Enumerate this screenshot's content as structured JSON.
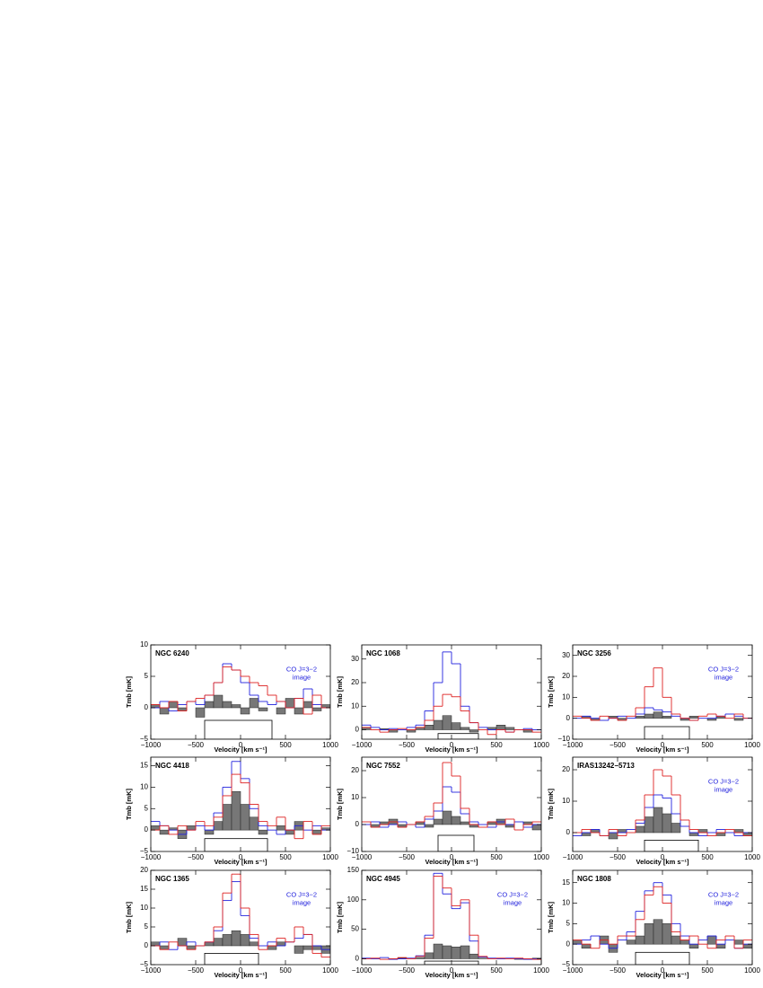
{
  "chart_data": [
    {
      "type": "step",
      "title": "NGC 6240",
      "xlabel": "Velocity [km s⁻¹]",
      "ylabel": "Tmb [mK]",
      "x": [
        -950,
        -850,
        -750,
        -650,
        -550,
        -450,
        -350,
        -250,
        -150,
        -50,
        50,
        150,
        250,
        350,
        450,
        550,
        650,
        750,
        850,
        950
      ],
      "series": [
        {
          "color": "#777777",
          "fill": true,
          "values": [
            0.5,
            -1,
            1,
            -0.5,
            0,
            -1.5,
            1,
            2,
            1,
            0.5,
            -1,
            1.5,
            -0.5,
            0,
            -1,
            1.5,
            -1,
            1,
            -0.5,
            0.5
          ]
        },
        {
          "color": "#2222dd",
          "values": [
            0,
            1,
            -0.5,
            0.5,
            1,
            0.5,
            2,
            4,
            7,
            6,
            4,
            2,
            1,
            0.5,
            1,
            0,
            1.5,
            3,
            0.5,
            0
          ]
        },
        {
          "color": "#dd2222",
          "values": [
            0.5,
            0,
            1,
            -0.5,
            1,
            1.5,
            2,
            4,
            6.5,
            6,
            5,
            4,
            3.5,
            2,
            1,
            0,
            1.5,
            -1,
            2,
            0
          ]
        }
      ],
      "window": [
        -400,
        350
      ],
      "annotation": [
        "CO J=3−2",
        "image"
      ],
      "xlim": [
        -1000,
        1000
      ],
      "xticks": [
        {
          "value": -1000,
          "label": "−1000"
        },
        {
          "value": -500,
          "label": "−500"
        },
        0,
        500,
        1000
      ],
      "ylim": [
        -5,
        10
      ],
      "yticks": [
        {
          "value": -5,
          "label": "−5"
        },
        0,
        5,
        10
      ]
    },
    {
      "type": "step",
      "title": "NGC 1068",
      "xlabel": "Velocity [km s⁻¹]",
      "ylabel": "Tmb [mK]",
      "x": [
        -950,
        -850,
        -750,
        -650,
        -550,
        -450,
        -350,
        -250,
        -150,
        -50,
        50,
        150,
        250,
        350,
        450,
        550,
        650,
        750,
        850,
        950
      ],
      "series": [
        {
          "color": "#777777",
          "fill": true,
          "values": [
            1,
            0,
            0.5,
            -1,
            0,
            -1,
            1,
            2,
            4,
            6,
            3,
            1,
            -1,
            0,
            1,
            2,
            1,
            0,
            -1,
            0
          ]
        },
        {
          "color": "#2222dd",
          "values": [
            2,
            1,
            0,
            0.5,
            0,
            1,
            2,
            8,
            20,
            33,
            28,
            10,
            3,
            1,
            0,
            0,
            -1,
            0,
            0.5,
            0
          ]
        },
        {
          "color": "#dd2222",
          "values": [
            1,
            0,
            -1,
            0,
            0.5,
            0,
            1,
            4,
            10,
            15,
            14,
            8,
            3,
            0,
            -2,
            0,
            -1,
            0,
            0,
            -1
          ]
        }
      ],
      "window": [
        -150,
        300
      ],
      "xlim": [
        -1000,
        1000
      ],
      "xticks": [
        {
          "value": -1000,
          "label": "−1000"
        },
        {
          "value": -500,
          "label": "−500"
        },
        0,
        500,
        1000
      ],
      "ylim": [
        -4,
        36
      ],
      "yticks": [
        0,
        10,
        20,
        30
      ]
    },
    {
      "type": "step",
      "title": "NGC 3256",
      "xlabel": "Velocity [km s⁻¹]",
      "ylabel": "Tmb [mK]",
      "x": [
        -950,
        -850,
        -750,
        -650,
        -550,
        -450,
        -350,
        -250,
        -150,
        -50,
        50,
        150,
        250,
        350,
        450,
        550,
        650,
        750,
        850,
        950
      ],
      "series": [
        {
          "color": "#777777",
          "fill": true,
          "values": [
            0,
            1,
            -1,
            0,
            1,
            -1,
            0,
            1,
            2,
            3,
            1,
            0,
            -1,
            1,
            0,
            -1,
            1,
            0,
            -1,
            0
          ]
        },
        {
          "color": "#2222dd",
          "values": [
            0,
            1,
            0,
            -1,
            0,
            1,
            0,
            2,
            5,
            4,
            3,
            1,
            0,
            -1,
            0,
            0,
            1,
            2,
            1,
            0
          ]
        },
        {
          "color": "#dd2222",
          "values": [
            1,
            0,
            -1,
            1,
            0,
            -1,
            1,
            5,
            15,
            24,
            10,
            2,
            0,
            -1,
            1,
            2,
            1,
            0,
            2,
            0
          ]
        }
      ],
      "window": [
        -200,
        300
      ],
      "annotation": [
        "CO J=3−2",
        "image"
      ],
      "xlim": [
        -1000,
        1000
      ],
      "xticks": [
        {
          "value": -1000,
          "label": "−1000"
        },
        {
          "value": -500,
          "label": "−500"
        },
        0,
        500,
        1000
      ],
      "ylim": [
        -10,
        35
      ],
      "yticks": [
        {
          "value": -10,
          "label": "−10"
        },
        0,
        10,
        20,
        30
      ]
    },
    {
      "type": "step",
      "title": "NGC 4418",
      "xlabel": "Velocity [km s⁻¹]",
      "ylabel": "Tmb [mK]",
      "x": [
        -950,
        -850,
        -750,
        -650,
        -550,
        -450,
        -350,
        -250,
        -150,
        -50,
        50,
        150,
        250,
        350,
        450,
        550,
        650,
        750,
        850,
        950
      ],
      "series": [
        {
          "color": "#777777",
          "fill": true,
          "values": [
            1,
            -1,
            0.5,
            -2,
            1,
            0,
            -1,
            2,
            6,
            9,
            6,
            3,
            -1,
            0,
            1,
            -1,
            2,
            0,
            -1,
            0.5
          ]
        },
        {
          "color": "#2222dd",
          "values": [
            2,
            1,
            0,
            -1,
            0,
            1,
            0,
            4,
            10,
            16,
            12,
            5,
            1,
            0,
            -1,
            0,
            1,
            0,
            1,
            0
          ]
        },
        {
          "color": "#dd2222",
          "values": [
            0,
            1,
            -1,
            1,
            0,
            2,
            1,
            3,
            8,
            13,
            11,
            6,
            2,
            1,
            3,
            0,
            -2,
            2,
            -1,
            1
          ]
        }
      ],
      "window": [
        -400,
        300
      ],
      "xlim": [
        -1000,
        1000
      ],
      "xticks": [
        {
          "value": -1000,
          "label": "−1000"
        },
        {
          "value": -500,
          "label": "−500"
        },
        0,
        500,
        1000
      ],
      "ylim": [
        -5,
        17
      ],
      "yticks": [
        {
          "value": -5,
          "label": "−5"
        },
        0,
        5,
        10,
        15
      ]
    },
    {
      "type": "step",
      "title": "NGC 7552",
      "xlabel": "Velocity [km s⁻¹]",
      "ylabel": "Tmb [mK]",
      "x": [
        -950,
        -850,
        -750,
        -650,
        -550,
        -450,
        -350,
        -250,
        -150,
        -50,
        50,
        150,
        250,
        350,
        450,
        550,
        650,
        750,
        850,
        950
      ],
      "series": [
        {
          "color": "#777777",
          "fill": true,
          "values": [
            0,
            -1,
            1,
            2,
            -1,
            0,
            1,
            -1,
            2,
            5,
            3,
            1,
            -1,
            0,
            1,
            2,
            -1,
            0,
            1,
            -2
          ]
        },
        {
          "color": "#2222dd",
          "values": [
            0,
            1,
            -1,
            0,
            1,
            0,
            -1,
            2,
            5,
            14,
            12,
            4,
            1,
            0,
            -1,
            1,
            0,
            1,
            -1,
            0
          ]
        },
        {
          "color": "#dd2222",
          "values": [
            1,
            -1,
            0,
            1,
            -1,
            0,
            1,
            3,
            8,
            23,
            18,
            6,
            0,
            -1,
            1,
            0,
            2,
            -2,
            0,
            1
          ]
        }
      ],
      "window": [
        -150,
        250
      ],
      "xlim": [
        -1000,
        1000
      ],
      "xticks": [
        {
          "value": -1000,
          "label": "−1000"
        },
        {
          "value": -500,
          "label": "−500"
        },
        0,
        500,
        1000
      ],
      "ylim": [
        -10,
        25
      ],
      "yticks": [
        {
          "value": -10,
          "label": "−10"
        },
        0,
        10,
        20
      ]
    },
    {
      "type": "step",
      "title": "IRAS13242−5713",
      "xlabel": "Velocity [km s⁻¹]",
      "ylabel": "Tmb [mK]",
      "x": [
        -950,
        -850,
        -750,
        -650,
        -550,
        -450,
        -350,
        -250,
        -150,
        -50,
        50,
        150,
        250,
        350,
        450,
        550,
        650,
        750,
        850,
        950
      ],
      "series": [
        {
          "color": "#777777",
          "fill": true,
          "values": [
            0,
            -1,
            1,
            0,
            -2,
            1,
            0,
            2,
            5,
            8,
            6,
            3,
            0,
            -1,
            1,
            0,
            -1,
            0,
            1,
            -1
          ]
        },
        {
          "color": "#2222dd",
          "values": [
            -1,
            0,
            1,
            -1,
            0,
            0,
            1,
            3,
            8,
            12,
            11,
            6,
            2,
            0,
            -1,
            0,
            1,
            0,
            -1,
            0
          ]
        },
        {
          "color": "#dd2222",
          "values": [
            0,
            1,
            0,
            -1,
            1,
            -1,
            0,
            4,
            12,
            20,
            18,
            12,
            4,
            1,
            0,
            -1,
            0,
            1,
            0,
            -1
          ]
        }
      ],
      "window": [
        -200,
        400
      ],
      "annotation": [
        "CO J=3−2",
        "image"
      ],
      "xlim": [
        -1000,
        1000
      ],
      "xticks": [
        {
          "value": -1000,
          "label": "−1000"
        },
        {
          "value": -500,
          "label": "−500"
        },
        0,
        500,
        1000
      ],
      "ylim": [
        -6,
        24
      ],
      "yticks": [
        0,
        10,
        20
      ]
    },
    {
      "type": "step",
      "title": "NGC 1365",
      "xlabel": "Velocity [km s⁻¹]",
      "ylabel": "Tmb [mK]",
      "x": [
        -950,
        -850,
        -750,
        -650,
        -550,
        -450,
        -350,
        -250,
        -150,
        -50,
        50,
        150,
        250,
        350,
        450,
        550,
        650,
        750,
        850,
        950
      ],
      "series": [
        {
          "color": "#777777",
          "fill": true,
          "values": [
            1,
            -1,
            0,
            2,
            -1,
            0,
            1,
            2,
            3,
            4,
            3,
            1,
            0,
            -1,
            1,
            0,
            -2,
            -1,
            -1,
            -2
          ]
        },
        {
          "color": "#2222dd",
          "values": [
            0,
            1,
            -1,
            0,
            1,
            0,
            1,
            4,
            12,
            17,
            8,
            2,
            0,
            1,
            0,
            1,
            2,
            3,
            0,
            -1
          ]
        },
        {
          "color": "#dd2222",
          "values": [
            0,
            -1,
            1,
            0,
            -1,
            0,
            1,
            5,
            14,
            19,
            10,
            3,
            -1,
            0,
            2,
            1,
            5,
            3,
            -2,
            -3
          ]
        }
      ],
      "window": [
        -400,
        200
      ],
      "annotation": [
        "CO J=3−2",
        "image"
      ],
      "xlim": [
        -1000,
        1000
      ],
      "xticks": [
        {
          "value": -1000,
          "label": "−1000"
        },
        {
          "value": -500,
          "label": "−500"
        },
        0,
        500,
        1000
      ],
      "ylim": [
        -5,
        20
      ],
      "yticks": [
        {
          "value": -5,
          "label": "−5"
        },
        0,
        5,
        10,
        15,
        20
      ]
    },
    {
      "type": "step",
      "title": "NGC 4945",
      "xlabel": "Velocity [km s⁻¹]",
      "ylabel": "Tmb [mK]",
      "x": [
        -950,
        -850,
        -750,
        -650,
        -550,
        -450,
        -350,
        -250,
        -150,
        -50,
        50,
        150,
        250,
        350,
        450,
        550,
        650,
        750,
        850,
        950
      ],
      "series": [
        {
          "color": "#777777",
          "fill": true,
          "values": [
            0,
            1,
            0,
            -1,
            1,
            0,
            2,
            10,
            25,
            22,
            20,
            22,
            8,
            1,
            0,
            1,
            0,
            -1,
            0,
            1
          ]
        },
        {
          "color": "#2222dd",
          "values": [
            1,
            0,
            2,
            -1,
            0,
            1,
            5,
            40,
            145,
            110,
            85,
            95,
            30,
            3,
            1,
            0,
            1,
            0,
            -1,
            0
          ]
        },
        {
          "color": "#dd2222",
          "values": [
            0,
            1,
            -1,
            0,
            2,
            0,
            4,
            35,
            140,
            120,
            90,
            100,
            40,
            4,
            0,
            1,
            0,
            1,
            0,
            -1
          ]
        }
      ],
      "window": [
        -300,
        300
      ],
      "annotation": [
        "CO J=3−2",
        "image"
      ],
      "xlim": [
        -1000,
        1000
      ],
      "xticks": [
        {
          "value": -1000,
          "label": "−1000"
        },
        {
          "value": -500,
          "label": "−500"
        },
        0,
        500,
        1000
      ],
      "ylim": [
        -10,
        150
      ],
      "yticks": [
        0,
        50,
        100,
        150
      ]
    },
    {
      "type": "step",
      "title": "NGC 1808",
      "xlabel": "Velocity [km s⁻¹]",
      "ylabel": "Tmb [mK]",
      "x": [
        -950,
        -850,
        -750,
        -650,
        -550,
        -450,
        -350,
        -250,
        -150,
        -50,
        50,
        150,
        250,
        350,
        450,
        550,
        650,
        750,
        850,
        950
      ],
      "series": [
        {
          "color": "#777777",
          "fill": true,
          "values": [
            1,
            -1,
            0,
            2,
            -2,
            0,
            1,
            2,
            5,
            6,
            5,
            2,
            1,
            -1,
            0,
            2,
            -1,
            0,
            1,
            -1
          ]
        },
        {
          "color": "#2222dd",
          "values": [
            0,
            1,
            2,
            0,
            -1,
            1,
            3,
            8,
            13,
            15,
            12,
            5,
            2,
            0,
            1,
            2,
            0,
            1,
            -1,
            0
          ]
        },
        {
          "color": "#dd2222",
          "values": [
            1,
            0,
            -1,
            1,
            0,
            2,
            2,
            6,
            12,
            14,
            10,
            3,
            1,
            2,
            0,
            -1,
            1,
            2,
            -1,
            1
          ]
        }
      ],
      "window": [
        -300,
        300
      ],
      "annotation": [
        "CO J=3−2",
        "image"
      ],
      "xlim": [
        -1000,
        1000
      ],
      "xticks": [
        {
          "value": -1000,
          "label": "−1000"
        },
        {
          "value": -500,
          "label": "−500"
        },
        0,
        500,
        1000
      ],
      "ylim": [
        -5,
        18
      ],
      "yticks": [
        {
          "value": -5,
          "label": "−5"
        },
        0,
        5,
        10,
        15
      ]
    }
  ]
}
